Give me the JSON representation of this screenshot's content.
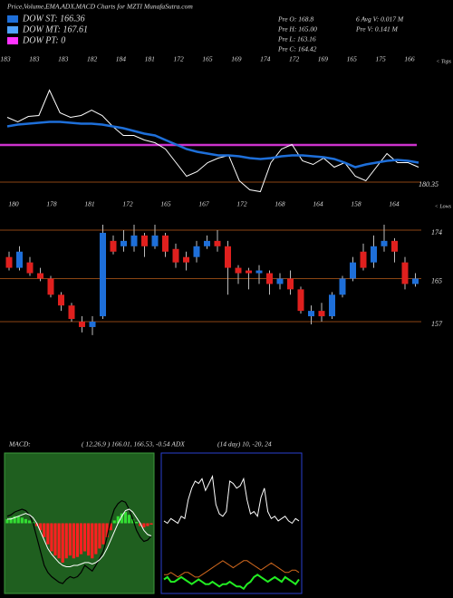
{
  "header": {
    "title": "Price,Volume,EMA,ADX,MACD Charts for MZTI MunafaSutra.com",
    "legend": [
      {
        "label": "DOW ST: 166.36",
        "color": "#1e6fd9"
      },
      {
        "label": "DOW MT: 167.61",
        "color": "#4fa3ff"
      },
      {
        "label": "DOW PT: 0",
        "color": "#ff33ff"
      }
    ],
    "info": [
      "Pre  O: 168.8",
      "6   Avg V: 0.017 M",
      "Pre  H: 165.00",
      "Pre   V: 0.141 M",
      "Pre  L: 163.16",
      "Pre  C: 164.42"
    ]
  },
  "chart_data": [
    {
      "type": "line",
      "top_labels": [
        "183",
        "183",
        "183",
        "182",
        "184",
        "181",
        "172",
        "165",
        "169",
        "174",
        "172",
        "169",
        "165",
        "175",
        "166"
      ],
      "end_label": "< Tops",
      "ylim": [
        179,
        193.45
      ],
      "yticks": [
        180.35
      ],
      "tick_color": "#8b4513",
      "reference_line": {
        "value": 184.45,
        "color": "#cc33cc"
      },
      "series": [
        {
          "color": "#ffffff",
          "values": [
            187.5,
            187,
            187.6,
            187.7,
            190.5,
            188,
            187.5,
            187.7,
            188.3,
            187.7,
            186.5,
            185.5,
            185.5,
            185,
            184.7,
            184,
            182.5,
            181,
            181.5,
            182.5,
            183,
            183.3,
            180.5,
            179.5,
            179.3,
            182.5,
            184,
            184.5,
            182.7,
            182.3,
            183,
            182,
            182.5,
            181,
            180.5,
            182,
            183.5,
            182.5,
            182.5,
            182
          ]
        },
        {
          "color": "#1e6fd9",
          "values": [
            186.5,
            186.7,
            186.8,
            186.9,
            187,
            187,
            186.9,
            186.8,
            186.8,
            186.7,
            186.5,
            186.3,
            186,
            185.7,
            185.5,
            185,
            184.5,
            184,
            183.7,
            183.5,
            183.3,
            183.3,
            183.2,
            183,
            182.9,
            183,
            183.2,
            183.3,
            183.3,
            183.2,
            183.1,
            182.9,
            182.5,
            182,
            182.3,
            182.5,
            182.7,
            182.8,
            182.7,
            182.5
          ]
        }
      ]
    },
    {
      "type": "candlestick",
      "top_labels": [
        "180",
        "178",
        "181",
        "172",
        "165",
        "167",
        "172",
        "168",
        "164",
        "158",
        "164"
      ],
      "end_label": "< Lows",
      "ylim": [
        150,
        178
      ],
      "yticks": [
        157,
        165,
        174
      ],
      "tick_color": "#8b4513",
      "up_color": "#1e6fd9",
      "down_color": "#e0201e",
      "open": [
        169,
        167,
        168,
        166,
        165,
        162,
        160,
        157,
        156,
        158,
        172,
        171,
        171,
        173,
        171,
        173,
        170.5,
        169,
        169,
        171,
        172,
        171,
        167,
        166.5,
        166,
        166,
        164,
        165,
        163,
        158,
        159,
        158,
        162,
        165,
        170,
        168,
        171,
        172,
        168,
        164
      ],
      "high": [
        170,
        171,
        169,
        167,
        165.5,
        162.5,
        160.5,
        158,
        158,
        175,
        173,
        174,
        175,
        173.5,
        175,
        173.5,
        171.5,
        170,
        172,
        173,
        174,
        172,
        167.5,
        167,
        167.5,
        166.5,
        166,
        166.5,
        163.5,
        160,
        160.5,
        162.5,
        165.5,
        169,
        171.5,
        173,
        175,
        172.5,
        169,
        166
      ],
      "low": [
        166.5,
        166.5,
        165.5,
        164.5,
        161.5,
        159,
        157,
        155,
        154.5,
        157.5,
        169.5,
        170,
        170,
        169,
        170.5,
        169,
        167,
        166.5,
        168,
        170.5,
        170,
        162,
        164,
        163,
        164,
        162,
        163,
        162,
        158.5,
        156.5,
        157,
        157.5,
        161.5,
        164.5,
        166.5,
        167,
        170,
        168,
        163,
        163.5
      ],
      "close": [
        167,
        170,
        166,
        165,
        162,
        160,
        157.5,
        156,
        157,
        173.5,
        170,
        172,
        173,
        171,
        173,
        170,
        168,
        168,
        171,
        172,
        171,
        167,
        166,
        166,
        166.5,
        164,
        165,
        163,
        159,
        159,
        158,
        162,
        165,
        168,
        167,
        171,
        172,
        170,
        164,
        165
      ]
    },
    {
      "type": "macd",
      "title": "MACD:",
      "subtitle": "( 12,26,9 ) 166.01, 166.53, -0.54 ADX",
      "ylim": [
        -5,
        5
      ],
      "bg": "#1f5f1f",
      "border": "#3c9a3c",
      "histogram": [
        0.3,
        0.4,
        0.5,
        0.5,
        0.4,
        0.3,
        0.2,
        0.1,
        -0.2,
        -0.5,
        -1,
        -1.5,
        -2,
        -2.3,
        -2.5,
        -2.8,
        -2.5,
        -2.3,
        -2.5,
        -2.4,
        -2.2,
        -2,
        -2.3,
        -2.5,
        -2.2,
        -1.8,
        -1.5,
        -1,
        -0.5,
        0.2,
        0.5,
        0.7,
        0.8,
        0.6,
        0.3,
        0.1,
        -0.2,
        -0.3,
        -0.2,
        -0.1
      ],
      "macd": [
        0.5,
        0.6,
        0.8,
        0.9,
        1,
        0.9,
        0.6,
        0,
        -1,
        -2,
        -3,
        -3.5,
        -3.8,
        -4,
        -4.2,
        -4.3,
        -4,
        -3.8,
        -3.9,
        -3.8,
        -3.5,
        -3,
        -3.2,
        -3.4,
        -3,
        -2.5,
        -2,
        -1,
        0.2,
        1,
        1.4,
        1.6,
        1.5,
        1,
        0.3,
        -0.5,
        -1,
        -1.3,
        -1.2,
        -0.9
      ],
      "signal": [
        0.3,
        0.3,
        0.4,
        0.5,
        0.6,
        0.7,
        0.6,
        0.4,
        0,
        -0.6,
        -1.2,
        -1.8,
        -2.2,
        -2.5,
        -2.8,
        -3,
        -3.1,
        -3.1,
        -3,
        -3,
        -2.9,
        -2.8,
        -2.8,
        -2.9,
        -2.8,
        -2.6,
        -2.3,
        -1.8,
        -1.2,
        -0.6,
        0,
        0.5,
        0.9,
        1,
        0.8,
        0.4,
        0,
        -0.5,
        -0.8,
        -0.9
      ],
      "pos_color": "#33dd33",
      "neg_color": "#ff2020",
      "macd_color": "#000000",
      "signal_color": "#ffffff"
    },
    {
      "type": "adx",
      "subtitle": "(14 day) 10, -20, 24",
      "ylim": [
        0,
        60
      ],
      "bg": "#000000",
      "border": "#2a3fd0",
      "series": [
        {
          "color": "#ffffff",
          "values": [
            31,
            30,
            32,
            31,
            30,
            33,
            32,
            40,
            45,
            48,
            47,
            49,
            44,
            47,
            50,
            38,
            34,
            33,
            35,
            48,
            47,
            45,
            46,
            49,
            40,
            34,
            35,
            33,
            41,
            45,
            35,
            32,
            33,
            31,
            32,
            33,
            31,
            30,
            32,
            31
          ]
        },
        {
          "color": "#d2691e",
          "values": [
            8,
            8,
            9,
            8,
            7,
            8,
            9,
            9,
            8,
            7,
            7,
            8,
            9,
            10,
            11,
            12,
            13,
            14,
            13,
            12,
            11,
            12,
            13,
            14,
            14,
            13,
            12,
            11,
            10,
            11,
            12,
            13,
            12,
            11,
            10,
            9,
            9,
            10,
            10,
            9
          ]
        },
        {
          "color": "#22ee22",
          "values": [
            6,
            7,
            5,
            5,
            6,
            7,
            6,
            5,
            4,
            5,
            6,
            5,
            4,
            4,
            5,
            4,
            3,
            4,
            4,
            5,
            4,
            3,
            3,
            2,
            4,
            5,
            7,
            8,
            7,
            6,
            5,
            6,
            7,
            6,
            5,
            7,
            6,
            5,
            4,
            6
          ]
        }
      ]
    }
  ]
}
